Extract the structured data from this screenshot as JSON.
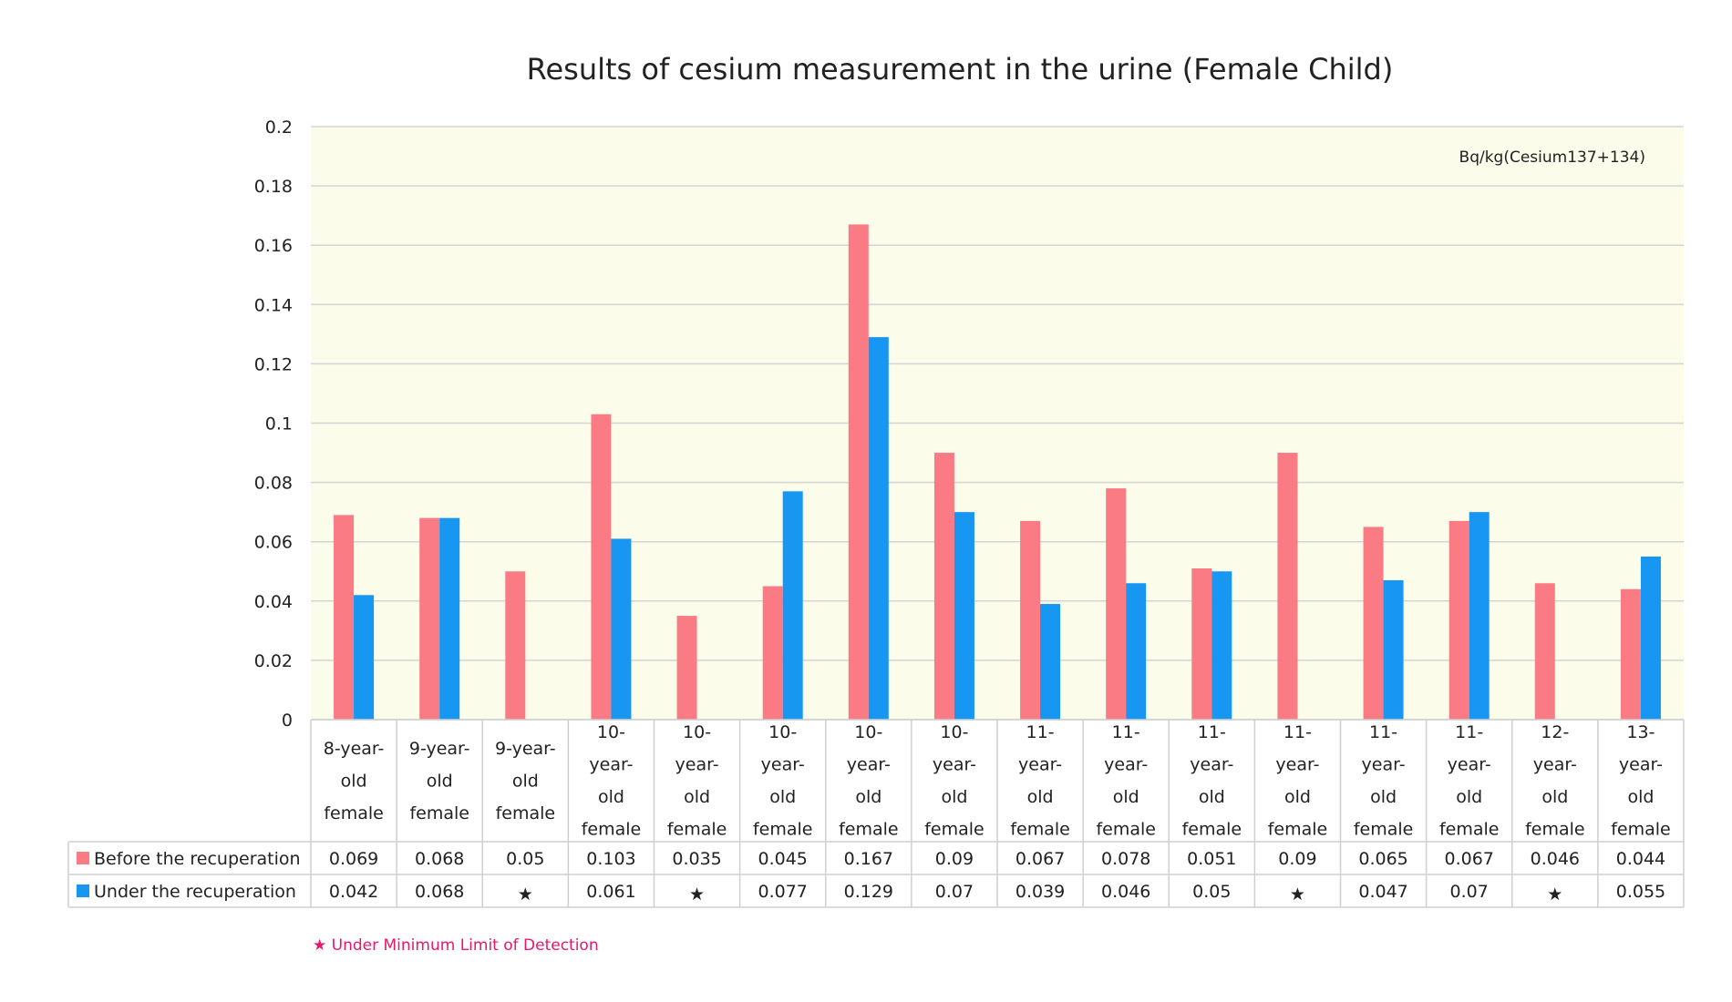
{
  "chart_data": {
    "type": "bar",
    "title": "Results of cesium measurement in the urine (Female Child)",
    "unit_label": "Bq/kg(Cesium137+134)",
    "ylim": [
      0,
      0.2
    ],
    "yticks": [
      "0",
      "0.02",
      "0.04",
      "0.06",
      "0.08",
      "0.1",
      "0.12",
      "0.14",
      "0.16",
      "0.18",
      "0.2"
    ],
    "grid": true,
    "legend": "data-table-left",
    "plot_background": "#fbfce9",
    "categories": [
      "8-year-old female",
      "9-year-old female",
      "9-year-old female",
      "10-year-old female",
      "10-year-old female",
      "10-year-old female",
      "10-year-old female",
      "10-year-old female",
      "11-year-old female",
      "11-year-old female",
      "11-year-old female",
      "11-year-old female",
      "11-year-old female",
      "11-year-old female",
      "12-year-old female",
      "13-year-old female"
    ],
    "category_lines": [
      [
        "8-year-",
        "old",
        "female"
      ],
      [
        "9-year-",
        "old",
        "female"
      ],
      [
        "9-year-",
        "old",
        "female"
      ],
      [
        "10-",
        "year-",
        "old",
        "female"
      ],
      [
        "10-",
        "year-",
        "old",
        "female"
      ],
      [
        "10-",
        "year-",
        "old",
        "female"
      ],
      [
        "10-",
        "year-",
        "old",
        "female"
      ],
      [
        "10-",
        "year-",
        "old",
        "female"
      ],
      [
        "11-",
        "year-",
        "old",
        "female"
      ],
      [
        "11-",
        "year-",
        "old",
        "female"
      ],
      [
        "11-",
        "year-",
        "old",
        "female"
      ],
      [
        "11-",
        "year-",
        "old",
        "female"
      ],
      [
        "11-",
        "year-",
        "old",
        "female"
      ],
      [
        "11-",
        "year-",
        "old",
        "female"
      ],
      [
        "12-",
        "year-",
        "old",
        "female"
      ],
      [
        "13-",
        "year-",
        "old",
        "female"
      ]
    ],
    "series": [
      {
        "name": "Before the recuperation",
        "color": "#fb7b85",
        "values": [
          0.069,
          0.068,
          0.05,
          0.103,
          0.035,
          0.045,
          0.167,
          0.09,
          0.067,
          0.078,
          0.051,
          0.09,
          0.065,
          0.067,
          0.046,
          0.044
        ],
        "labels": [
          "0.069",
          "0.068",
          "0.05",
          "0.103",
          "0.035",
          "0.045",
          "0.167",
          "0.09",
          "0.067",
          "0.078",
          "0.051",
          "0.09",
          "0.065",
          "0.067",
          "0.046",
          "0.044"
        ]
      },
      {
        "name": "Under the recuperation",
        "color": "#1796f2",
        "values": [
          0.042,
          0.068,
          null,
          0.061,
          null,
          0.077,
          0.129,
          0.07,
          0.039,
          0.046,
          0.05,
          null,
          0.047,
          0.07,
          null,
          0.055
        ],
        "labels": [
          "0.042",
          "0.068",
          "★",
          "0.061",
          "★",
          "0.077",
          "0.129",
          "0.07",
          "0.039",
          "0.046",
          "0.05",
          "★",
          "0.047",
          "0.07",
          "★",
          "0.055"
        ]
      }
    ],
    "footnote": "★ Under Minimum Limit of Detection",
    "star_color": "#e6186c"
  }
}
